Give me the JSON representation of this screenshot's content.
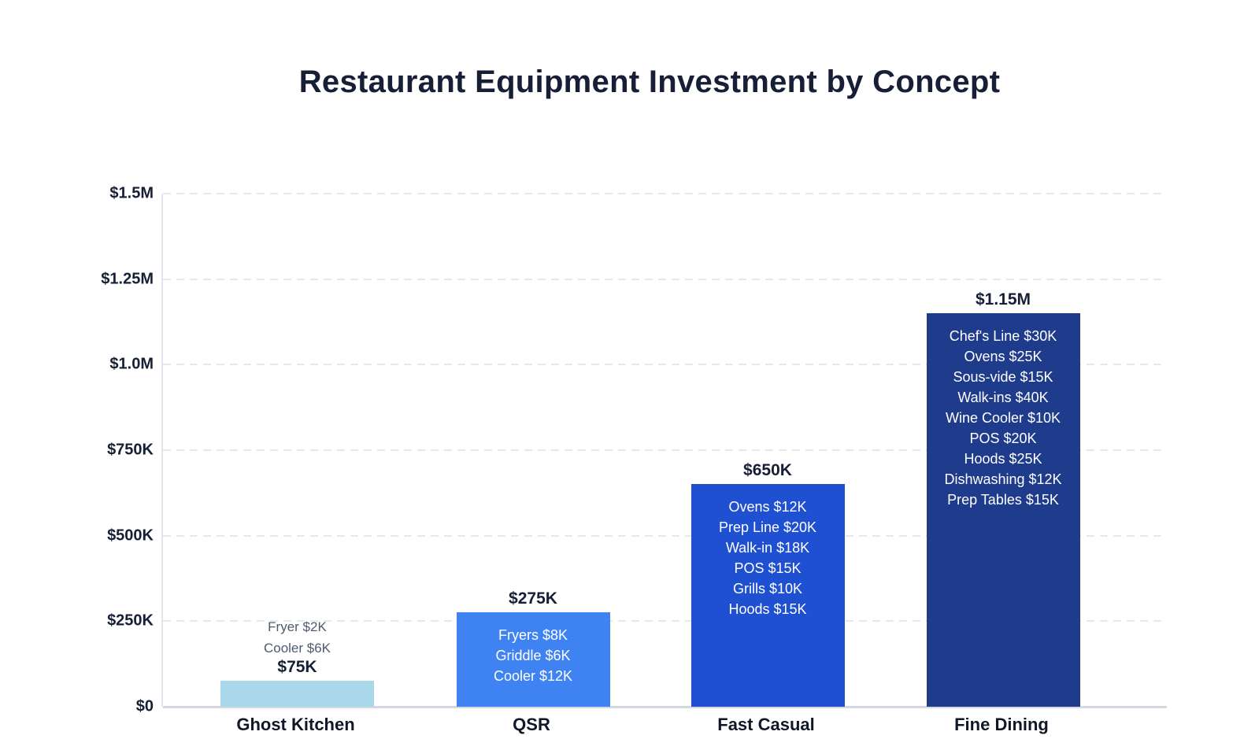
{
  "chart_data": {
    "type": "bar",
    "title": "Restaurant Equipment Investment by Concept",
    "categories": [
      "Ghost Kitchen",
      "QSR",
      "Fast Casual",
      "Fine Dining"
    ],
    "values": [
      75000,
      275000,
      650000,
      1150000
    ],
    "value_labels": [
      "$75K",
      "$275K",
      "$650K",
      "$1.15M"
    ],
    "bar_colors": [
      "#a9d8ea",
      "#3f83f2",
      "#1f50d2",
      "#1f3b8c"
    ],
    "item_breakdowns": [
      {
        "placement": "above-bar",
        "lines": [
          "Fryer $2K",
          "Cooler $6K"
        ]
      },
      {
        "placement": "inside-bar",
        "lines": [
          "Fryers $8K",
          "Griddle $6K",
          "Cooler $12K"
        ]
      },
      {
        "placement": "inside-bar",
        "lines": [
          "Ovens $12K",
          "Prep Line $20K",
          "Walk-in $18K",
          "POS $15K",
          "Grills $10K",
          "Hoods $15K"
        ]
      },
      {
        "placement": "inside-bar",
        "lines": [
          "Chef's Line $30K",
          "Ovens $25K",
          "Sous-vide $15K",
          "Walk-ins $40K",
          "Wine Cooler $10K",
          "POS $20K",
          "Hoods $25K",
          "Dishwashing $12K",
          "Prep Tables $15K"
        ]
      }
    ],
    "xlabel": "",
    "ylabel": "",
    "y_axis": {
      "min": 0,
      "max": 1500000,
      "tick_values": [
        0,
        250000,
        500000,
        750000,
        1000000,
        1250000,
        1500000
      ],
      "tick_labels": [
        "$0",
        "$250K",
        "$500K",
        "$750K",
        "$1.0M",
        "$1.25M",
        "$1.5M"
      ]
    },
    "grid": "horizontal-dashed",
    "legend": "none"
  },
  "colors": {
    "background": "#ffffff",
    "title_text": "#171f36",
    "axis_tick_text": "#171f36",
    "value_label_text": "#171f36",
    "category_label_text": "#101828",
    "above_bar_item_text": "#4e5a6e",
    "inside_bar_item_text": "#ffffff",
    "gridline": "#e5e8ef",
    "y_axis_line": "#e2e5ec",
    "x_axis_line": "#d4d8e1"
  }
}
